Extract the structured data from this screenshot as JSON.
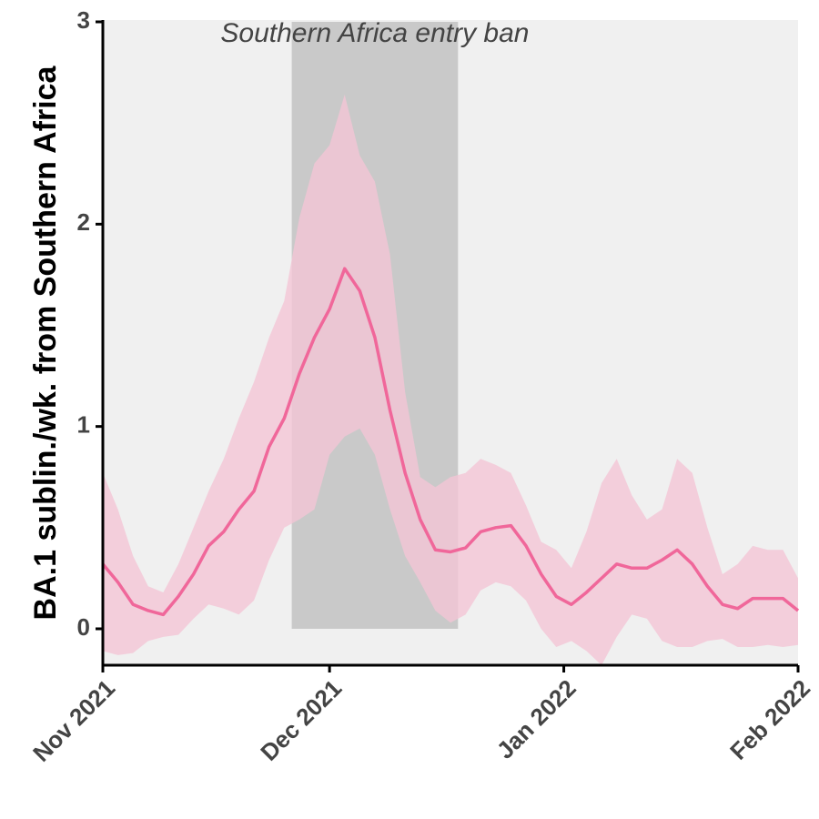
{
  "chart_data": {
    "type": "line",
    "ylabel": "BA.1 sublin./wk. from Southern Africa",
    "x": [
      0,
      2,
      4,
      6,
      8,
      10,
      12,
      14,
      16,
      18,
      20,
      22,
      24,
      26,
      28,
      30,
      32,
      34,
      36,
      38,
      40,
      42,
      44,
      46,
      48,
      50,
      52,
      54,
      56,
      58,
      60,
      62,
      64,
      66,
      68,
      70,
      72,
      74,
      76,
      78,
      80,
      82,
      84,
      86,
      88,
      90,
      92
    ],
    "series": [
      {
        "color": "#f0679a",
        "band_color": "#f4c5d6",
        "values": [
          0.32,
          0.23,
          0.12,
          0.09,
          0.07,
          0.16,
          0.27,
          0.41,
          0.48,
          0.59,
          0.68,
          0.9,
          1.04,
          1.26,
          1.44,
          1.58,
          1.78,
          1.67,
          1.44,
          1.08,
          0.77,
          0.54,
          0.39,
          0.38,
          0.4,
          0.48,
          0.5,
          0.51,
          0.41,
          0.27,
          0.16,
          0.12,
          0.18,
          0.25,
          0.32,
          0.3,
          0.3,
          0.34,
          0.39,
          0.32,
          0.21,
          0.12,
          0.1,
          0.15,
          0.15,
          0.15,
          0.09
        ],
        "upper": [
          0.77,
          0.59,
          0.36,
          0.21,
          0.18,
          0.32,
          0.5,
          0.68,
          0.84,
          1.04,
          1.22,
          1.44,
          1.62,
          2.03,
          2.3,
          2.39,
          2.64,
          2.34,
          2.21,
          1.85,
          1.17,
          0.75,
          0.7,
          0.75,
          0.77,
          0.84,
          0.81,
          0.77,
          0.61,
          0.43,
          0.39,
          0.3,
          0.48,
          0.72,
          0.84,
          0.66,
          0.54,
          0.59,
          0.84,
          0.77,
          0.5,
          0.27,
          0.32,
          0.41,
          0.39,
          0.39,
          0.25
        ],
        "lower": [
          -0.11,
          -0.13,
          -0.12,
          -0.06,
          -0.04,
          -0.03,
          0.05,
          0.12,
          0.1,
          0.07,
          0.14,
          0.34,
          0.5,
          0.54,
          0.59,
          0.86,
          0.95,
          0.99,
          0.86,
          0.59,
          0.36,
          0.23,
          0.09,
          0.03,
          0.07,
          0.19,
          0.23,
          0.21,
          0.14,
          0.0,
          -0.09,
          -0.06,
          -0.11,
          -0.18,
          -0.04,
          0.07,
          0.05,
          -0.06,
          -0.09,
          -0.09,
          -0.06,
          -0.05,
          -0.09,
          -0.09,
          -0.08,
          -0.09,
          -0.08
        ]
      }
    ],
    "annotation": {
      "text": "Southern Africa entry ban",
      "xspan": [
        25,
        47
      ],
      "yspan": [
        0,
        3
      ],
      "color": "#c9c9c9"
    },
    "xlim": [
      0,
      92
    ],
    "xticks": [
      {
        "value": 0,
        "label": "Nov 2021"
      },
      {
        "value": 30,
        "label": "Dec 2021"
      },
      {
        "value": 61,
        "label": "Jan 2022"
      },
      {
        "value": 92,
        "label": "Feb 2022"
      }
    ],
    "ylim": [
      -0.18,
      3
    ],
    "yticks": [
      0,
      1,
      2,
      3
    ],
    "background": "#f0f0f0"
  }
}
